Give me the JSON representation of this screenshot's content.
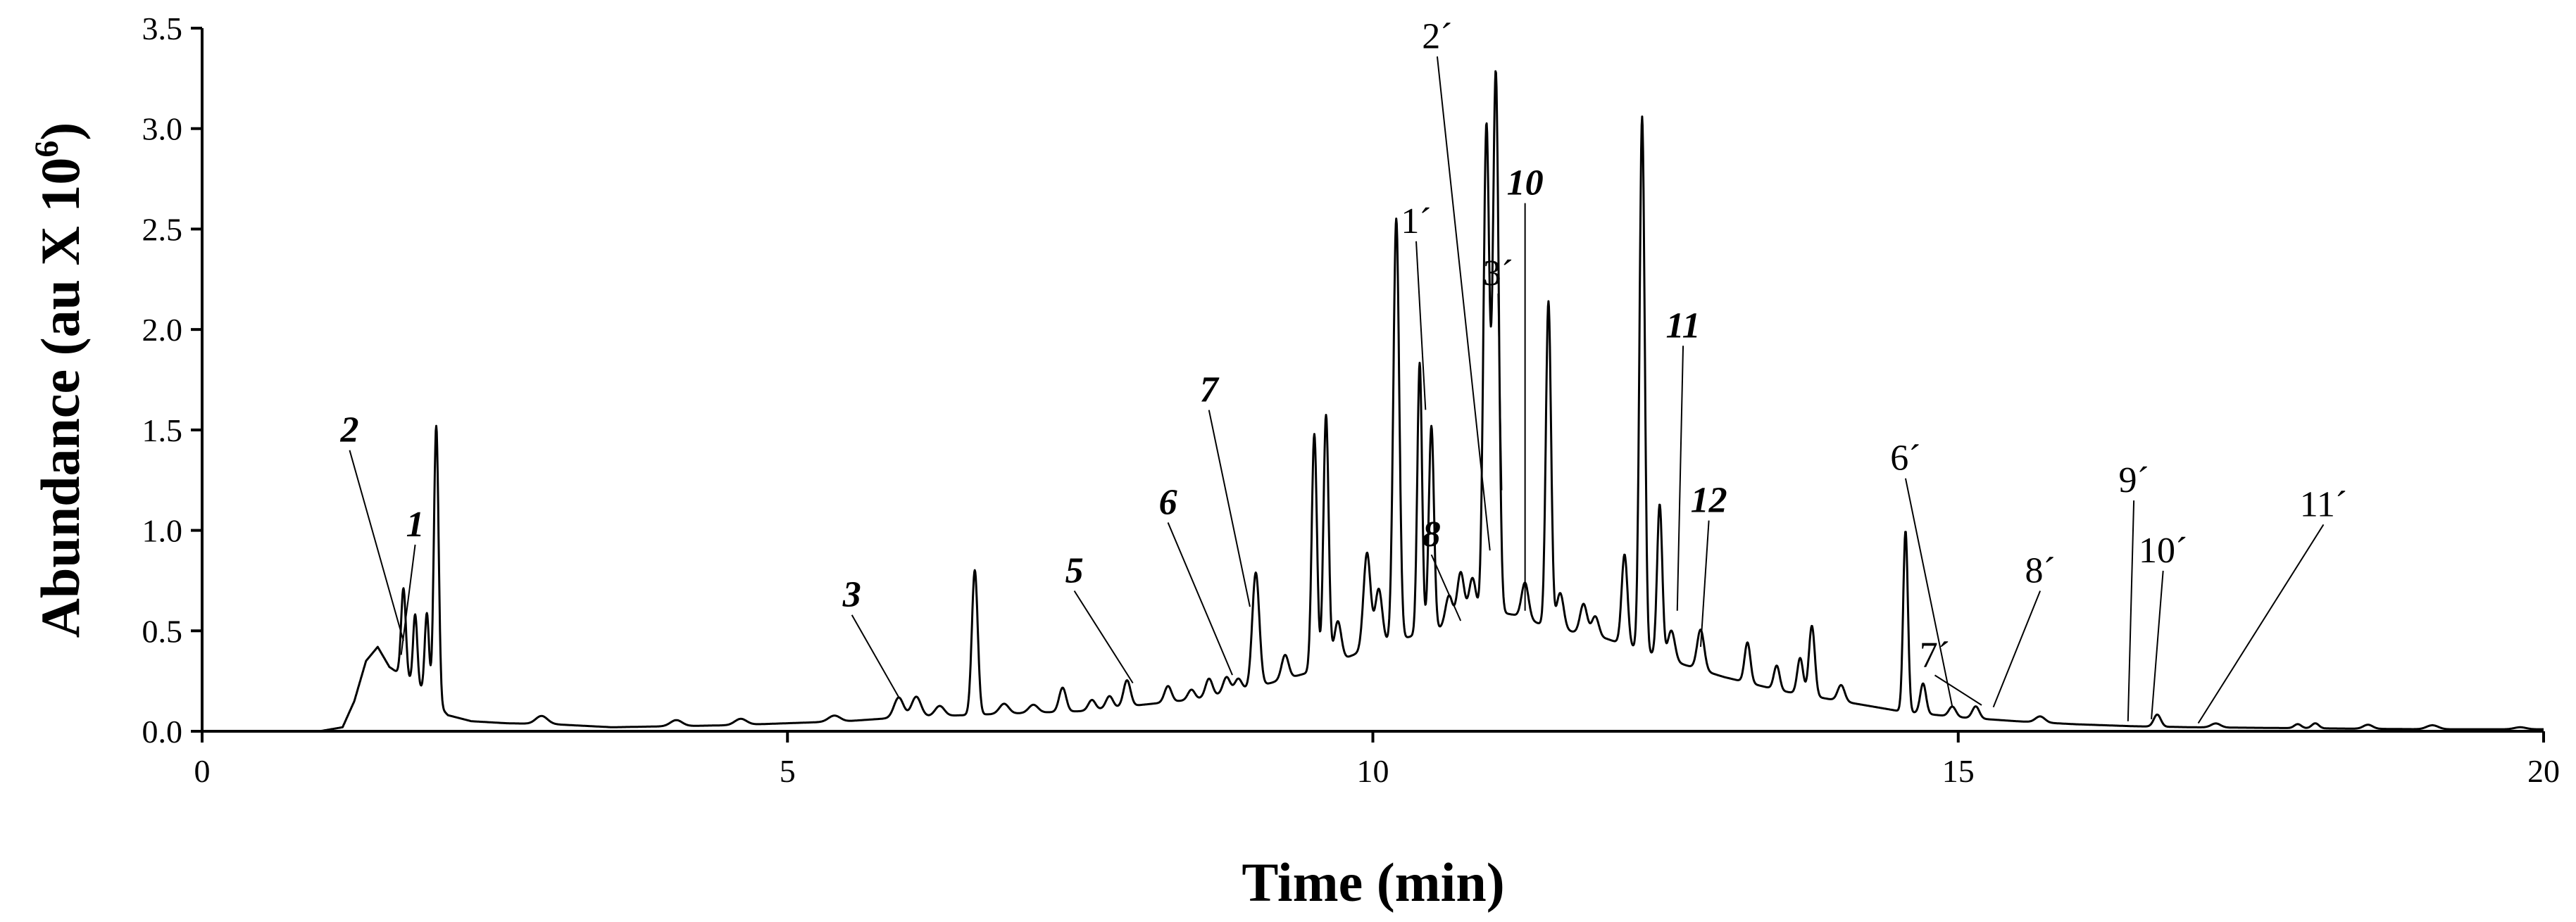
{
  "chart_data": {
    "type": "line",
    "xlabel": "Time (min)",
    "ylabel": {
      "main": "Abundance (au X 10",
      "sup": "6",
      "close": ")"
    },
    "xlim": [
      0,
      20
    ],
    "ylim": [
      0,
      3.5
    ],
    "x_ticks": [
      {
        "value": 0,
        "label": "0"
      },
      {
        "value": 5,
        "label": "5"
      },
      {
        "value": 10,
        "label": "10"
      },
      {
        "value": 15,
        "label": "15"
      },
      {
        "value": 20,
        "label": "20"
      }
    ],
    "y_ticks": [
      {
        "value": 0,
        "label": "0.0"
      },
      {
        "value": 0.5,
        "label": "0.5"
      },
      {
        "value": 1.0,
        "label": "1.0"
      },
      {
        "value": 1.5,
        "label": "1.5"
      },
      {
        "value": 2.0,
        "label": "2.0"
      },
      {
        "value": 2.5,
        "label": "2.5"
      },
      {
        "value": 3.0,
        "label": "3.0"
      },
      {
        "value": 3.5,
        "label": "3.5"
      }
    ],
    "baseline": [
      [
        1.0,
        0.0
      ],
      [
        1.2,
        0.02
      ],
      [
        1.3,
        0.15
      ],
      [
        1.4,
        0.35
      ],
      [
        1.5,
        0.42
      ],
      [
        1.6,
        0.32
      ],
      [
        1.7,
        0.28
      ],
      [
        1.9,
        0.2
      ],
      [
        2.1,
        0.08
      ],
      [
        2.3,
        0.05
      ],
      [
        2.6,
        0.04
      ],
      [
        3.0,
        0.035
      ],
      [
        3.5,
        0.02
      ],
      [
        4.0,
        0.025
      ],
      [
        4.5,
        0.03
      ],
      [
        5.0,
        0.04
      ],
      [
        5.5,
        0.05
      ],
      [
        6.0,
        0.07
      ],
      [
        6.5,
        0.08
      ],
      [
        7.0,
        0.09
      ],
      [
        7.5,
        0.1
      ],
      [
        8.0,
        0.13
      ],
      [
        8.5,
        0.16
      ],
      [
        9.0,
        0.22
      ],
      [
        9.5,
        0.3
      ],
      [
        10.0,
        0.42
      ],
      [
        10.5,
        0.5
      ],
      [
        10.8,
        0.55
      ],
      [
        11.0,
        0.6
      ],
      [
        11.2,
        0.58
      ],
      [
        11.5,
        0.52
      ],
      [
        12.0,
        0.46
      ],
      [
        12.5,
        0.36
      ],
      [
        13.0,
        0.27
      ],
      [
        13.5,
        0.2
      ],
      [
        14.0,
        0.15
      ],
      [
        14.5,
        0.1
      ],
      [
        15.0,
        0.07
      ],
      [
        15.5,
        0.05
      ],
      [
        16.0,
        0.035
      ],
      [
        16.5,
        0.025
      ],
      [
        17.0,
        0.02
      ],
      [
        18.0,
        0.015
      ],
      [
        19.0,
        0.01
      ],
      [
        20.0,
        0.01
      ]
    ],
    "peaks": [
      [
        1.72,
        0.44,
        0.02
      ],
      [
        1.82,
        0.35,
        0.018
      ],
      [
        1.92,
        0.4,
        0.018
      ],
      [
        2.0,
        1.38,
        0.02
      ],
      [
        2.9,
        0.04,
        0.05
      ],
      [
        4.05,
        0.03,
        0.05
      ],
      [
        4.6,
        0.03,
        0.05
      ],
      [
        5.4,
        0.03,
        0.05
      ],
      [
        5.95,
        0.1,
        0.04
      ],
      [
        6.1,
        0.1,
        0.04
      ],
      [
        6.3,
        0.05,
        0.04
      ],
      [
        6.6,
        0.72,
        0.025
      ],
      [
        6.85,
        0.05,
        0.04
      ],
      [
        7.1,
        0.04,
        0.04
      ],
      [
        7.35,
        0.12,
        0.03
      ],
      [
        7.6,
        0.05,
        0.03
      ],
      [
        7.75,
        0.06,
        0.03
      ],
      [
        7.9,
        0.13,
        0.03
      ],
      [
        8.25,
        0.08,
        0.03
      ],
      [
        8.45,
        0.05,
        0.03
      ],
      [
        8.6,
        0.09,
        0.03
      ],
      [
        8.75,
        0.08,
        0.03
      ],
      [
        8.85,
        0.06,
        0.03
      ],
      [
        9.0,
        0.57,
        0.03
      ],
      [
        9.25,
        0.12,
        0.03
      ],
      [
        9.5,
        1.18,
        0.022
      ],
      [
        9.6,
        1.25,
        0.022
      ],
      [
        9.7,
        0.2,
        0.03
      ],
      [
        9.95,
        0.48,
        0.03
      ],
      [
        10.05,
        0.28,
        0.03
      ],
      [
        10.2,
        2.1,
        0.025
      ],
      [
        10.4,
        1.35,
        0.02
      ],
      [
        10.5,
        1.02,
        0.022
      ],
      [
        10.65,
        0.15,
        0.03
      ],
      [
        10.75,
        0.25,
        0.03
      ],
      [
        10.85,
        0.2,
        0.03
      ],
      [
        10.97,
        2.42,
        0.025
      ],
      [
        11.05,
        2.68,
        0.025
      ],
      [
        11.3,
        0.18,
        0.03
      ],
      [
        11.5,
        1.62,
        0.022
      ],
      [
        11.6,
        0.18,
        0.03
      ],
      [
        11.8,
        0.15,
        0.03
      ],
      [
        11.9,
        0.1,
        0.03
      ],
      [
        12.15,
        0.45,
        0.025
      ],
      [
        12.3,
        2.66,
        0.022
      ],
      [
        12.45,
        0.76,
        0.022
      ],
      [
        12.55,
        0.15,
        0.03
      ],
      [
        12.8,
        0.2,
        0.03
      ],
      [
        13.2,
        0.2,
        0.025
      ],
      [
        13.45,
        0.12,
        0.025
      ],
      [
        13.65,
        0.18,
        0.025
      ],
      [
        13.75,
        0.35,
        0.025
      ],
      [
        14.0,
        0.08,
        0.03
      ],
      [
        14.55,
        0.9,
        0.02
      ],
      [
        14.7,
        0.15,
        0.025
      ],
      [
        14.95,
        0.05,
        0.03
      ],
      [
        15.15,
        0.06,
        0.03
      ],
      [
        15.7,
        0.03,
        0.04
      ],
      [
        16.7,
        0.06,
        0.03
      ],
      [
        17.2,
        0.02,
        0.04
      ],
      [
        17.9,
        0.02,
        0.03
      ],
      [
        18.05,
        0.025,
        0.03
      ],
      [
        18.5,
        0.02,
        0.04
      ],
      [
        19.05,
        0.02,
        0.05
      ],
      [
        19.8,
        0.01,
        0.05
      ]
    ],
    "annotations": [
      {
        "label": "1",
        "bold": true,
        "text_x": 1.82,
        "text_y": 0.95,
        "tip_x": 1.7,
        "tip_y": 0.38
      },
      {
        "label": "2",
        "bold": true,
        "text_x": 1.26,
        "text_y": 1.42,
        "tip_x": 1.72,
        "tip_y": 0.45
      },
      {
        "label": "3",
        "bold": true,
        "text_x": 5.55,
        "text_y": 0.6,
        "tip_x": 5.95,
        "tip_y": 0.17
      },
      {
        "label": "5",
        "bold": true,
        "text_x": 7.45,
        "text_y": 0.72,
        "tip_x": 7.95,
        "tip_y": 0.24
      },
      {
        "label": "6",
        "bold": true,
        "text_x": 8.25,
        "text_y": 1.06,
        "tip_x": 8.8,
        "tip_y": 0.28
      },
      {
        "label": "7",
        "bold": true,
        "text_x": 8.6,
        "text_y": 1.62,
        "tip_x": 8.95,
        "tip_y": 0.62
      },
      {
        "label": "8",
        "bold": true,
        "text_x": 10.5,
        "text_y": 0.9,
        "tip_x": 10.75,
        "tip_y": 0.55
      },
      {
        "label": "10",
        "bold": true,
        "text_x": 11.3,
        "text_y": 2.65,
        "tip_x": 11.3,
        "tip_y": 0.6
      },
      {
        "label": "11",
        "bold": true,
        "text_x": 12.65,
        "text_y": 1.94,
        "tip_x": 12.6,
        "tip_y": 0.6
      },
      {
        "label": "12",
        "bold": true,
        "text_x": 12.87,
        "text_y": 1.07,
        "tip_x": 12.8,
        "tip_y": 0.42
      },
      {
        "label": "1´",
        "bold": false,
        "text_x": 10.37,
        "text_y": 2.46,
        "tip_x": 10.45,
        "tip_y": 1.6
      },
      {
        "label": "2´",
        "bold": false,
        "text_x": 10.55,
        "text_y": 3.38,
        "tip_x": 11.0,
        "tip_y": 0.9
      },
      {
        "label": "3´",
        "bold": false,
        "text_x": 11.07,
        "text_y": 2.2,
        "tip_x": 11.1,
        "tip_y": 1.2
      },
      {
        "label": "6´",
        "bold": false,
        "text_x": 14.55,
        "text_y": 1.28,
        "tip_x": 14.95,
        "tip_y": 0.12
      },
      {
        "label": "7´",
        "bold": false,
        "text_x": 14.8,
        "text_y": 0.3,
        "tip_x": 15.2,
        "tip_y": 0.13
      },
      {
        "label": "8´",
        "bold": false,
        "text_x": 15.7,
        "text_y": 0.72,
        "tip_x": 15.3,
        "tip_y": 0.12
      },
      {
        "label": "9´",
        "bold": false,
        "text_x": 16.5,
        "text_y": 1.17,
        "tip_x": 16.45,
        "tip_y": 0.05
      },
      {
        "label": "10´",
        "bold": false,
        "text_x": 16.75,
        "text_y": 0.82,
        "tip_x": 16.65,
        "tip_y": 0.06
      },
      {
        "label": "11´",
        "bold": false,
        "text_x": 18.12,
        "text_y": 1.05,
        "tip_x": 17.05,
        "tip_y": 0.04
      }
    ]
  }
}
